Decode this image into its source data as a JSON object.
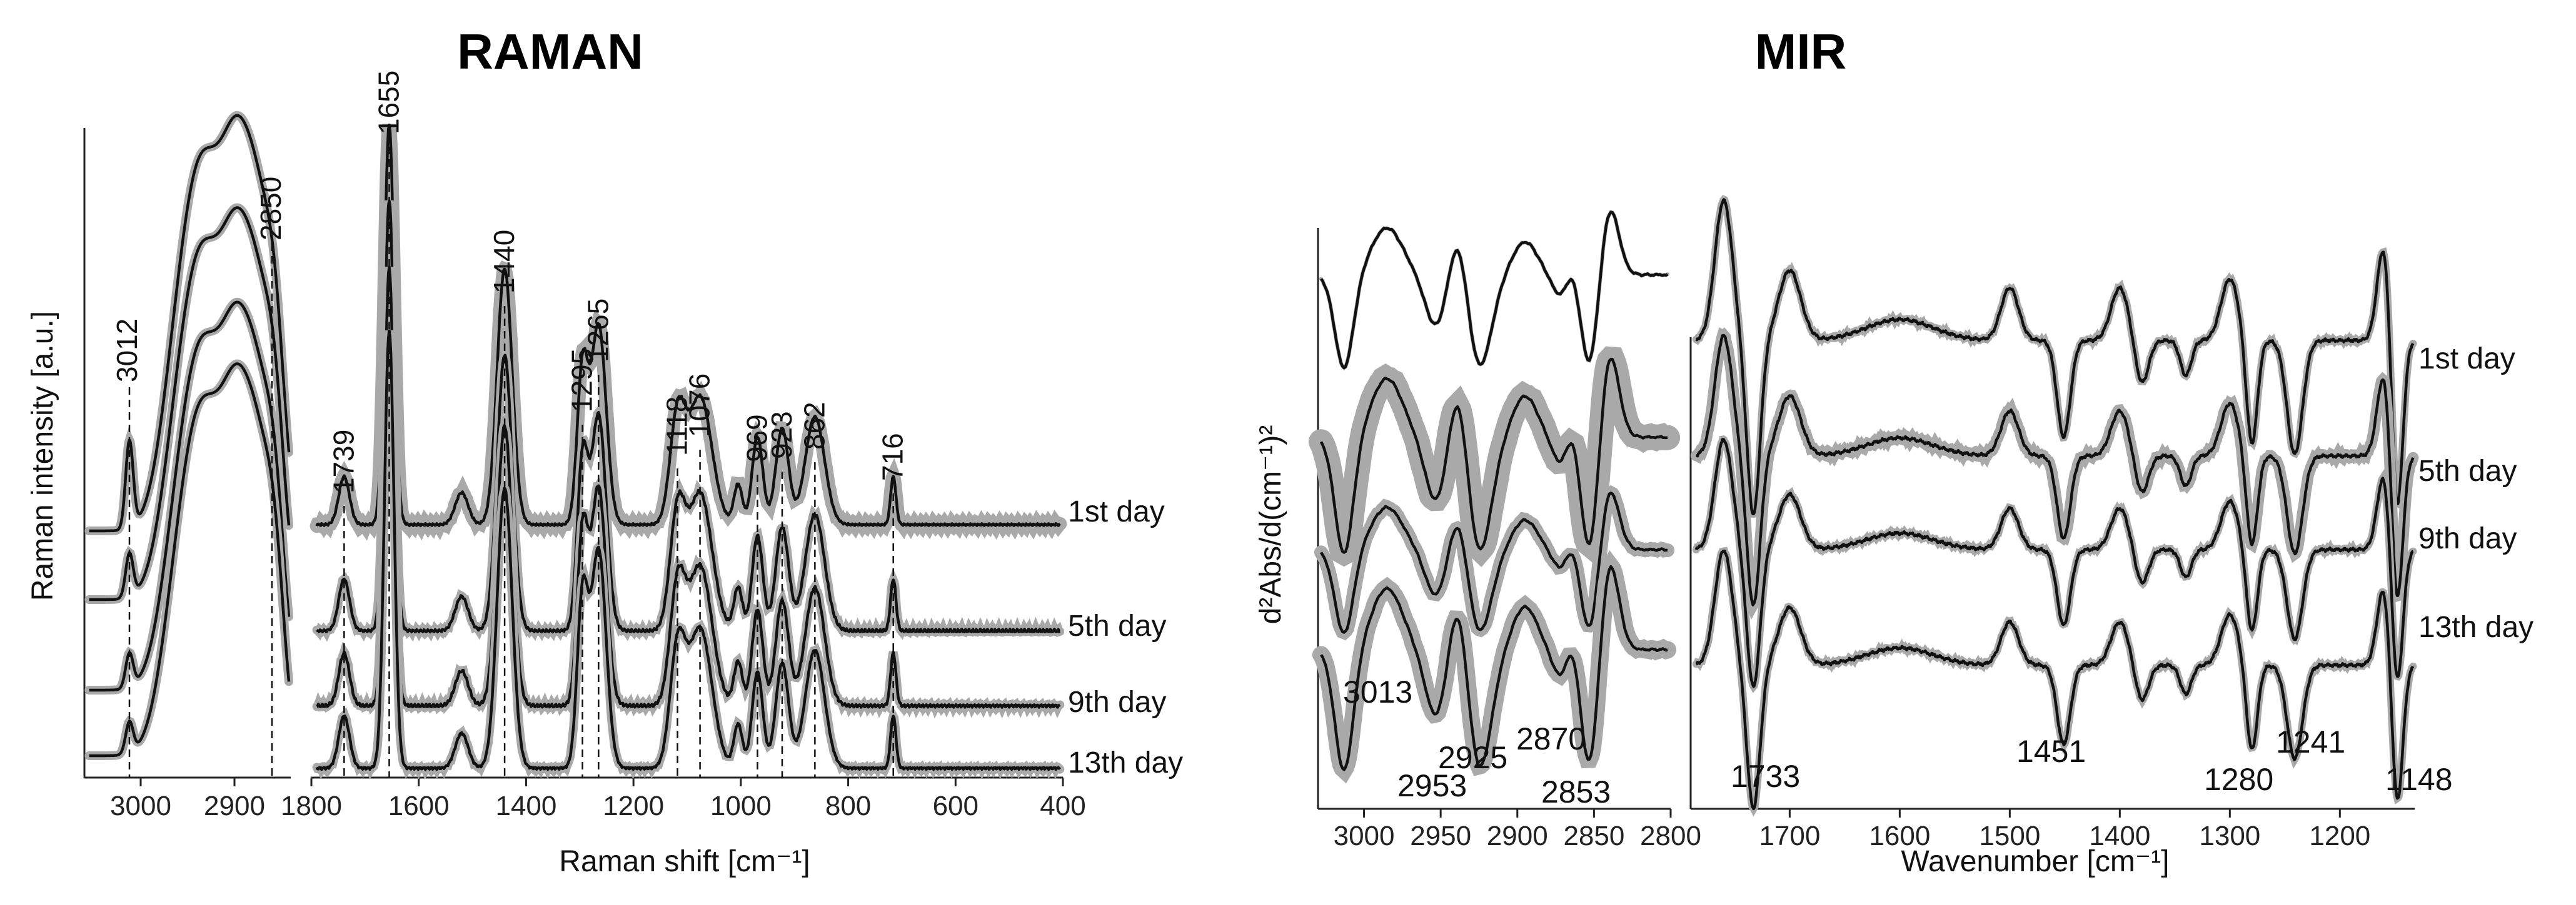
{
  "chart_data": [
    {
      "type": "line",
      "title": "RAMAN",
      "xlabel": "Raman shift [cm⁻¹]",
      "ylabel": "Raman intensity [a.u.]",
      "panels": [
        {
          "xlim": [
            3060,
            2840
          ],
          "xticks": [
            "3000",
            "2900"
          ]
        },
        {
          "xlim": [
            1800,
            400
          ],
          "xticks": [
            "1800",
            "1600",
            "1400",
            "1200",
            "1000",
            "800",
            "600",
            "400"
          ]
        }
      ],
      "series": [
        "1st day",
        "5th day",
        "9th day",
        "13th day"
      ],
      "peaks": [
        "3012",
        "2850",
        "1739",
        "1655",
        "1440",
        "1295",
        "1265",
        "1118",
        "1076",
        "969",
        "923",
        "862",
        "716"
      ]
    },
    {
      "type": "line",
      "title": "MIR",
      "xlabel": "Wavenumber [cm⁻¹]",
      "ylabel": "d²Abs/d(cm⁻¹)²",
      "panels": [
        {
          "xlim": [
            3030,
            2800
          ],
          "xticks": [
            "3000",
            "2950",
            "2900",
            "2850",
            "2800"
          ]
        },
        {
          "xlim": [
            1790,
            1132
          ],
          "xticks": [
            "1700",
            "1600",
            "1500",
            "1400",
            "1300",
            "1200"
          ]
        }
      ],
      "series": [
        "1st day",
        "5th day",
        "9th day",
        "13th day"
      ],
      "peaks": [
        "3013",
        "2953",
        "2925",
        "2870",
        "2853",
        "1733",
        "1451",
        "1280",
        "1241",
        "1148"
      ]
    }
  ],
  "labels": {
    "raman_title": "RAMAN",
    "mir_title": "MIR",
    "raman_xlabel": "Raman shift [cm⁻¹]",
    "raman_ylabel": "Raman intensity [a.u.]",
    "mir_xlabel": "Wavenumber [cm⁻¹]",
    "mir_ylabel": "d²Abs/d(cm⁻¹)²",
    "days": [
      "1st day",
      "5th day",
      "9th day",
      "13th day"
    ]
  }
}
